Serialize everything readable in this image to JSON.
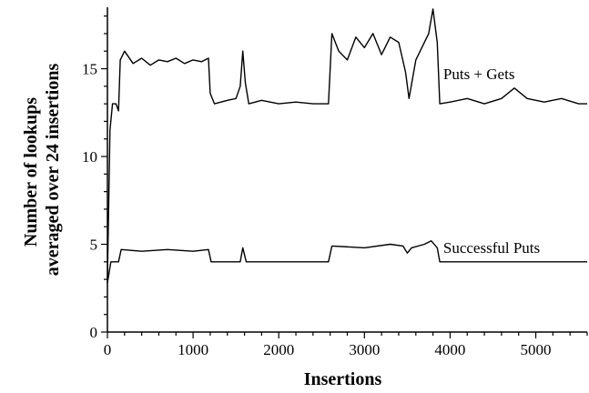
{
  "chart_data": {
    "type": "line",
    "xlabel": "Insertions",
    "ylabel_lines": [
      "Number of lookups",
      "averaged over 24 insertions"
    ],
    "xlim": [
      0,
      5600
    ],
    "ylim": [
      0,
      18.5
    ],
    "x_ticks": [
      0,
      1000,
      2000,
      3000,
      4000,
      5000
    ],
    "y_ticks": [
      0,
      5,
      10,
      15
    ],
    "x_minor_step": 200,
    "y_minor_step": 1,
    "grid": false,
    "series": [
      {
        "name": "Puts + Gets",
        "color": "#000000",
        "points": [
          [
            0,
            3.0
          ],
          [
            30,
            11.5
          ],
          [
            60,
            13.0
          ],
          [
            100,
            13.0
          ],
          [
            130,
            12.6
          ],
          [
            150,
            15.5
          ],
          [
            200,
            16.0
          ],
          [
            300,
            15.3
          ],
          [
            400,
            15.6
          ],
          [
            500,
            15.2
          ],
          [
            600,
            15.5
          ],
          [
            700,
            15.4
          ],
          [
            800,
            15.6
          ],
          [
            900,
            15.3
          ],
          [
            1000,
            15.5
          ],
          [
            1100,
            15.4
          ],
          [
            1180,
            15.6
          ],
          [
            1200,
            13.6
          ],
          [
            1250,
            13.0
          ],
          [
            1400,
            13.2
          ],
          [
            1500,
            13.3
          ],
          [
            1550,
            14.0
          ],
          [
            1580,
            16.0
          ],
          [
            1610,
            14.2
          ],
          [
            1650,
            13.0
          ],
          [
            1800,
            13.2
          ],
          [
            2000,
            13.0
          ],
          [
            2200,
            13.1
          ],
          [
            2400,
            13.0
          ],
          [
            2580,
            13.0
          ],
          [
            2620,
            17.0
          ],
          [
            2700,
            16.0
          ],
          [
            2800,
            15.5
          ],
          [
            2900,
            16.8
          ],
          [
            3000,
            16.2
          ],
          [
            3100,
            17.0
          ],
          [
            3200,
            15.8
          ],
          [
            3300,
            16.8
          ],
          [
            3400,
            16.5
          ],
          [
            3480,
            14.8
          ],
          [
            3520,
            13.3
          ],
          [
            3600,
            15.5
          ],
          [
            3700,
            16.5
          ],
          [
            3750,
            17.0
          ],
          [
            3800,
            18.4
          ],
          [
            3850,
            16.5
          ],
          [
            3880,
            13.0
          ],
          [
            4000,
            13.1
          ],
          [
            4200,
            13.3
          ],
          [
            4400,
            13.0
          ],
          [
            4600,
            13.3
          ],
          [
            4750,
            13.9
          ],
          [
            4900,
            13.3
          ],
          [
            5100,
            13.1
          ],
          [
            5300,
            13.3
          ],
          [
            5500,
            13.0
          ],
          [
            5600,
            13.0
          ]
        ]
      },
      {
        "name": "Successful Puts",
        "color": "#000000",
        "points": [
          [
            0,
            2.8
          ],
          [
            40,
            4.0
          ],
          [
            130,
            4.0
          ],
          [
            160,
            4.7
          ],
          [
            400,
            4.6
          ],
          [
            700,
            4.7
          ],
          [
            1000,
            4.6
          ],
          [
            1180,
            4.7
          ],
          [
            1210,
            4.0
          ],
          [
            1550,
            4.0
          ],
          [
            1580,
            4.8
          ],
          [
            1620,
            4.0
          ],
          [
            2000,
            4.0
          ],
          [
            2580,
            4.0
          ],
          [
            2620,
            4.9
          ],
          [
            3000,
            4.8
          ],
          [
            3300,
            5.0
          ],
          [
            3450,
            4.9
          ],
          [
            3500,
            4.5
          ],
          [
            3550,
            4.8
          ],
          [
            3700,
            5.0
          ],
          [
            3780,
            5.2
          ],
          [
            3850,
            4.8
          ],
          [
            3880,
            4.0
          ],
          [
            4500,
            4.0
          ],
          [
            5000,
            4.0
          ],
          [
            5600,
            4.0
          ]
        ]
      }
    ]
  }
}
